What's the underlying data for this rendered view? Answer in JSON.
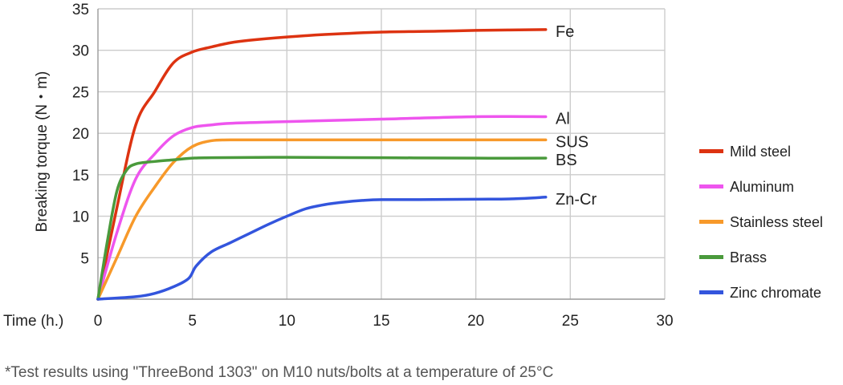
{
  "chart_data": {
    "type": "line",
    "xlabel": "Time (h.)",
    "ylabel": "Breaking torque (N・m)",
    "xlim": [
      0,
      30
    ],
    "ylim": [
      0,
      35
    ],
    "x_ticks": [
      "0",
      "5",
      "10",
      "15",
      "20",
      "25",
      "30"
    ],
    "y_ticks": [
      "5",
      "10",
      "15",
      "20",
      "25",
      "30",
      "35"
    ],
    "grid": true,
    "legend_position": "right",
    "series": [
      {
        "name": "Mild steel",
        "end_label": "Fe",
        "color": "#dd3311",
        "points": [
          [
            0,
            0
          ],
          [
            1,
            11
          ],
          [
            2,
            21
          ],
          [
            3,
            25
          ],
          [
            4,
            28.5
          ],
          [
            5,
            29.8
          ],
          [
            6,
            30.4
          ],
          [
            7,
            30.9
          ],
          [
            8,
            31.2
          ],
          [
            10,
            31.6
          ],
          [
            12,
            31.9
          ],
          [
            15,
            32.2
          ],
          [
            18,
            32.3
          ],
          [
            20,
            32.4
          ],
          [
            23.7,
            32.5
          ]
        ]
      },
      {
        "name": "Aluminum",
        "end_label": "Al",
        "color": "#ee55ee",
        "points": [
          [
            0,
            0
          ],
          [
            1,
            8
          ],
          [
            2,
            14.5
          ],
          [
            3,
            17.5
          ],
          [
            4,
            19.7
          ],
          [
            5,
            20.7
          ],
          [
            6,
            21
          ],
          [
            7,
            21.2
          ],
          [
            10,
            21.4
          ],
          [
            15,
            21.7
          ],
          [
            20,
            22
          ],
          [
            23.7,
            22
          ]
        ]
      },
      {
        "name": "Stainless steel",
        "end_label": "SUS",
        "color": "#f7992a",
        "points": [
          [
            0,
            0
          ],
          [
            1,
            5
          ],
          [
            2,
            10
          ],
          [
            3,
            13.5
          ],
          [
            4,
            16.5
          ],
          [
            5,
            18.4
          ],
          [
            6,
            19.1
          ],
          [
            7,
            19.2
          ],
          [
            10,
            19.2
          ],
          [
            15,
            19.2
          ],
          [
            20,
            19.2
          ],
          [
            23.7,
            19.2
          ]
        ]
      },
      {
        "name": "Brass",
        "end_label": "BS",
        "color": "#4a9a3c",
        "points": [
          [
            0,
            0
          ],
          [
            0.5,
            7
          ],
          [
            1,
            13
          ],
          [
            1.5,
            15.5
          ],
          [
            2,
            16.3
          ],
          [
            3,
            16.6
          ],
          [
            4,
            16.8
          ],
          [
            5,
            17
          ],
          [
            6,
            17.05
          ],
          [
            10,
            17.1
          ],
          [
            15,
            17.05
          ],
          [
            20,
            17
          ],
          [
            23.7,
            17
          ]
        ]
      },
      {
        "name": "Zinc chromate",
        "end_label": "Zn-Cr",
        "color": "#3355dd",
        "points": [
          [
            0,
            0
          ],
          [
            2,
            0.3
          ],
          [
            3,
            0.7
          ],
          [
            4,
            1.5
          ],
          [
            4.8,
            2.5
          ],
          [
            5.2,
            4
          ],
          [
            6,
            5.7
          ],
          [
            7,
            6.8
          ],
          [
            8,
            7.9
          ],
          [
            9,
            9
          ],
          [
            10,
            10
          ],
          [
            11,
            10.9
          ],
          [
            12,
            11.4
          ],
          [
            13,
            11.7
          ],
          [
            14,
            11.9
          ],
          [
            15,
            12
          ],
          [
            17,
            12
          ],
          [
            20,
            12.05
          ],
          [
            22,
            12.1
          ],
          [
            23.7,
            12.3
          ]
        ]
      }
    ]
  },
  "footnote": "*Test results using \"ThreeBond 1303\" on M10 nuts/bolts at a temperature of 25°C"
}
